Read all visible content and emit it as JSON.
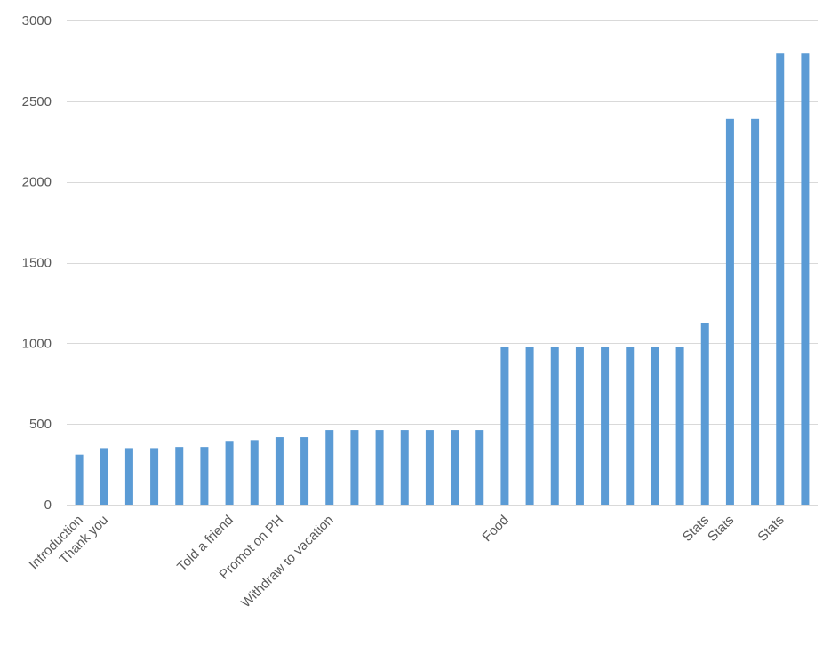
{
  "chart_data": {
    "type": "bar",
    "title": "",
    "xlabel": "",
    "ylabel": "",
    "ylim": [
      0,
      3000
    ],
    "yticks": [
      0,
      500,
      1000,
      1500,
      2000,
      2500,
      3000
    ],
    "grid": true,
    "legend": "none",
    "colors": {
      "bar": "#5b9bd5",
      "grid": "#d9d9d9",
      "text": "#595959"
    },
    "categories": [
      "Introduction",
      "Thank you",
      "",
      "",
      "",
      "",
      "Told a friend",
      "",
      "Promot on PH",
      "",
      "Withdraw to vacation",
      "",
      "",
      "",
      "",
      "",
      "",
      "Food",
      "",
      "",
      "",
      "",
      "",
      "",
      "",
      "Stats",
      "Stats",
      "",
      "Stats",
      ""
    ],
    "values": [
      310,
      350,
      350,
      350,
      357,
      357,
      395,
      400,
      418,
      418,
      462,
      462,
      462,
      462,
      462,
      462,
      462,
      975,
      975,
      975,
      975,
      975,
      975,
      975,
      975,
      1125,
      2390,
      2390,
      2795,
      2795
    ]
  }
}
